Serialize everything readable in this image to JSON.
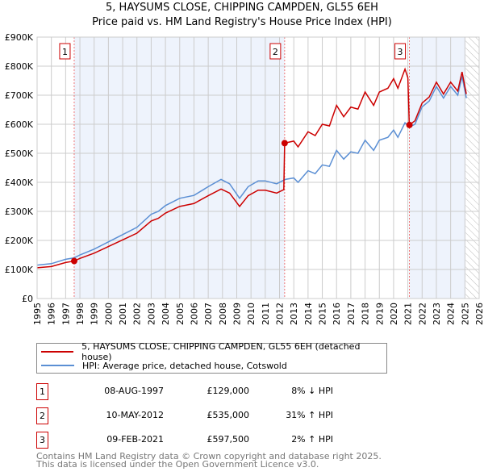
{
  "title": "5, HAYSUMS CLOSE, CHIPPING CAMPDEN, GL55 6EH",
  "subtitle": "Price paid vs. HM Land Registry's House Price Index (HPI)",
  "chart_data": {
    "type": "line",
    "title": "5, HAYSUMS CLOSE, CHIPPING CAMPDEN, GL55 6EH",
    "subtitle": "Price paid vs. HM Land Registry's House Price Index (HPI)",
    "xlim": [
      1995,
      2026
    ],
    "ylim": [
      0,
      900000
    ],
    "x_ticks": [
      "1995",
      "1996",
      "1997",
      "1998",
      "1999",
      "2000",
      "2001",
      "2002",
      "2003",
      "2004",
      "2005",
      "2006",
      "2007",
      "2008",
      "2009",
      "2010",
      "2011",
      "2012",
      "2013",
      "2014",
      "2015",
      "2016",
      "2017",
      "2018",
      "2019",
      "2020",
      "2021",
      "2022",
      "2023",
      "2024",
      "2025",
      "2026"
    ],
    "y_ticks": [
      {
        "v": 0,
        "label": "£0"
      },
      {
        "v": 100000,
        "label": "£100K"
      },
      {
        "v": 200000,
        "label": "£200K"
      },
      {
        "v": 300000,
        "label": "£300K"
      },
      {
        "v": 400000,
        "label": "£400K"
      },
      {
        "v": 500000,
        "label": "£500K"
      },
      {
        "v": 600000,
        "label": "£600K"
      },
      {
        "v": 700000,
        "label": "£700K"
      },
      {
        "v": 800000,
        "label": "£800K"
      },
      {
        "v": 900000,
        "label": "£900K"
      }
    ],
    "grid": true,
    "data_end": 2025.05,
    "series": [
      {
        "name": "5, HAYSUMS CLOSE, CHIPPING CAMPDEN, GL55 6EH (detached house)",
        "color": "#cc0000",
        "x": [
          1995,
          1996,
          1997,
          1997.6,
          1998,
          1999,
          2000,
          2001,
          2002,
          2003,
          2003.5,
          2004,
          2005,
          2006,
          2007,
          2007.9,
          2008.5,
          2009.2,
          2009.8,
          2010.5,
          2011,
          2011.8,
          2012.3,
          2012.36,
          2013,
          2013.3,
          2014,
          2014.5,
          2015,
          2015.5,
          2016,
          2016.5,
          2017,
          2017.5,
          2018,
          2018.6,
          2019,
          2019.6,
          2020,
          2020.3,
          2020.8,
          2021.0,
          2021.1,
          2021.5,
          2022,
          2022.5,
          2023,
          2023.5,
          2024,
          2024.5,
          2024.8,
          2025.1
        ],
        "y": [
          106000,
          110000,
          124000,
          129000,
          138000,
          156000,
          179000,
          202000,
          225000,
          267000,
          276000,
          294000,
          317000,
          327000,
          354000,
          377000,
          363000,
          317000,
          354000,
          373000,
          373000,
          363000,
          375000,
          535000,
          542000,
          522000,
          574000,
          561000,
          600000,
          594000,
          665000,
          626000,
          659000,
          652000,
          711000,
          665000,
          711000,
          724000,
          757000,
          724000,
          790000,
          760000,
          597500,
          612000,
          673000,
          694000,
          745000,
          704000,
          745000,
          714000,
          780000,
          704000
        ]
      },
      {
        "name": "HPI: Average price, detached house, Cotswold",
        "color": "#5b8fd4",
        "x": [
          1995,
          1996,
          1997,
          1997.6,
          1998,
          1999,
          2000,
          2001,
          2002,
          2003,
          2003.5,
          2004,
          2005,
          2006,
          2007,
          2007.9,
          2008.5,
          2009.2,
          2009.8,
          2010.5,
          2011,
          2011.8,
          2012.4,
          2013,
          2013.3,
          2014,
          2014.5,
          2015,
          2015.5,
          2016,
          2016.5,
          2017,
          2017.5,
          2018,
          2018.6,
          2019,
          2019.6,
          2020,
          2020.3,
          2020.8,
          2021.1,
          2021.5,
          2022,
          2022.5,
          2023,
          2023.5,
          2024,
          2024.5,
          2024.8,
          2025.1
        ],
        "y": [
          115000,
          120000,
          135000,
          140000,
          150000,
          170000,
          195000,
          220000,
          245000,
          290000,
          300000,
          320000,
          345000,
          355000,
          385000,
          410000,
          395000,
          345000,
          385000,
          405000,
          405000,
          395000,
          410000,
          415000,
          400000,
          440000,
          430000,
          460000,
          455000,
          510000,
          480000,
          505000,
          500000,
          545000,
          510000,
          545000,
          555000,
          580000,
          555000,
          605000,
          590000,
          600000,
          660000,
          680000,
          730000,
          690000,
          730000,
          700000,
          765000,
          690000
        ]
      }
    ],
    "sales": [
      {
        "n": "1",
        "x": 1997.6,
        "y": 129000,
        "date": "08-AUG-1997",
        "price": "£129,000",
        "hpi": "8% ↓ HPI"
      },
      {
        "n": "2",
        "x": 2012.36,
        "y": 535000,
        "date": "10-MAY-2012",
        "price": "£535,000",
        "hpi": "31% ↑ HPI"
      },
      {
        "n": "3",
        "x": 2021.11,
        "y": 597500,
        "date": "09-FEB-2021",
        "price": "£597,500",
        "hpi": "2% ↑ HPI"
      }
    ]
  },
  "legend": {
    "property": "5, HAYSUMS CLOSE, CHIPPING CAMPDEN, GL55 6EH (detached house)",
    "hpi": "HPI: Average price, detached house, Cotswold"
  },
  "footer": {
    "line1": "Contains HM Land Registry data © Crown copyright and database right 2025.",
    "line2": "This data is licensed under the Open Government Licence v3.0."
  }
}
